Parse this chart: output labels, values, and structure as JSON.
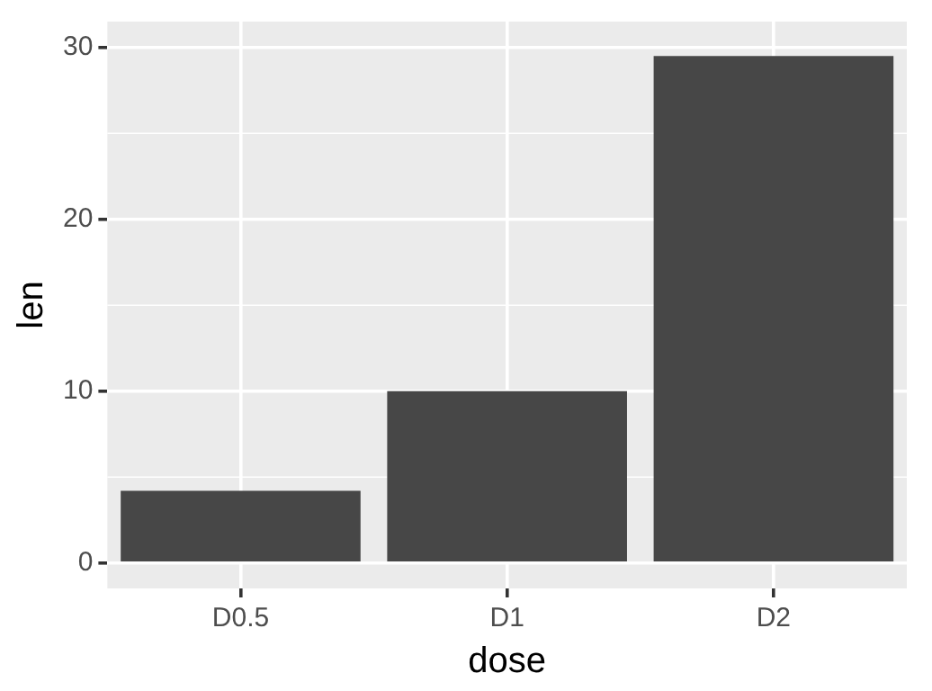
{
  "chart_data": {
    "type": "bar",
    "xlabel": "dose",
    "ylabel": "len",
    "categories": [
      "D0.5",
      "D1",
      "D2"
    ],
    "values": [
      4.2,
      10,
      29.5
    ],
    "color": "#474747",
    "ylim": [
      -1.475,
      31.5
    ],
    "yticks": [
      0,
      10,
      20,
      30
    ],
    "grid": true,
    "legend": false
  }
}
